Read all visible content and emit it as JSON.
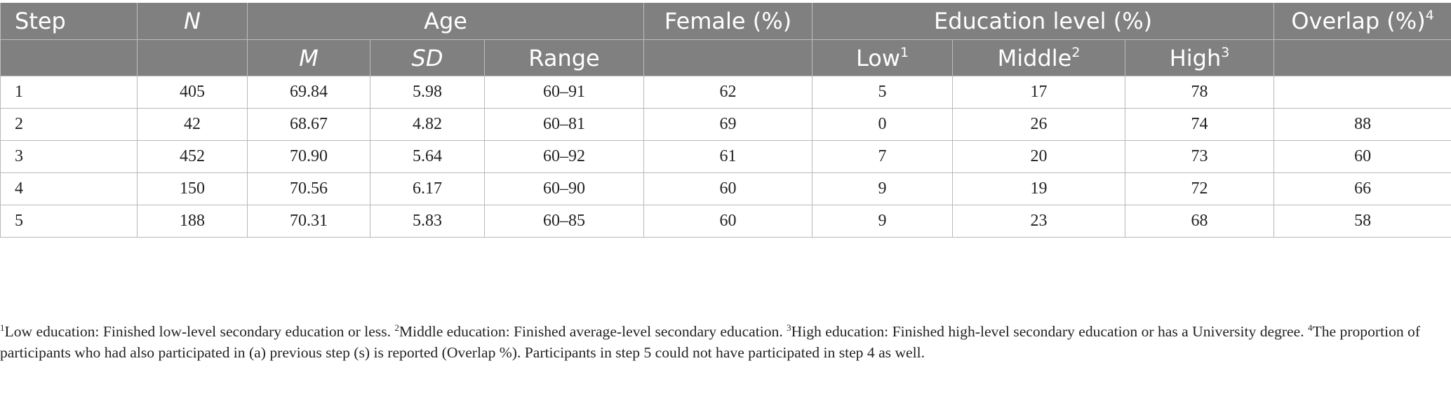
{
  "table": {
    "headers_row1": {
      "step": "Step",
      "n": "N",
      "age": "Age",
      "female": "Female (%)",
      "education": "Education level (%)",
      "overlap": "Overlap (%)",
      "overlap_sup": "4"
    },
    "headers_row2": {
      "m": "M",
      "sd": "SD",
      "range": "Range",
      "low": "Low",
      "low_sup": "1",
      "middle": "Middle",
      "middle_sup": "2",
      "high": "High",
      "high_sup": "3"
    },
    "rows": [
      {
        "step": "1",
        "n": "405",
        "m": "69.84",
        "sd": "5.98",
        "range": "60–91",
        "female": "62",
        "low": "5",
        "middle": "17",
        "high": "78",
        "overlap": ""
      },
      {
        "step": "2",
        "n": "42",
        "m": "68.67",
        "sd": "4.82",
        "range": "60–81",
        "female": "69",
        "low": "0",
        "middle": "26",
        "high": "74",
        "overlap": "88"
      },
      {
        "step": "3",
        "n": "452",
        "m": "70.90",
        "sd": "5.64",
        "range": "60–92",
        "female": "61",
        "low": "7",
        "middle": "20",
        "high": "73",
        "overlap": "60"
      },
      {
        "step": "4",
        "n": "150",
        "m": "70.56",
        "sd": "6.17",
        "range": "60–90",
        "female": "60",
        "low": "9",
        "middle": "19",
        "high": "72",
        "overlap": "66"
      },
      {
        "step": "5",
        "n": "188",
        "m": "70.31",
        "sd": "5.83",
        "range": "60–85",
        "female": "60",
        "low": "9",
        "middle": "23",
        "high": "68",
        "overlap": "58"
      }
    ]
  },
  "footnote": {
    "sup1": "1",
    "text1": "Low education: Finished low-level secondary education or less. ",
    "sup2": "2",
    "text2": "Middle education: Finished average-level secondary education. ",
    "sup3": "3",
    "text3": "High education: Finished high-level secondary education or has a University degree. ",
    "sup4": "4",
    "text4": "The proportion of participants who had also participated in (a) previous step (s) is reported (Overlap %). Participants in step 5 could not have participated in step 4 as well."
  }
}
